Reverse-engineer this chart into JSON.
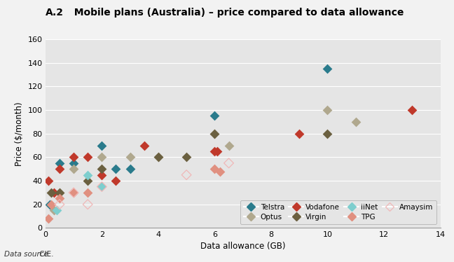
{
  "title_prefix": "A.2",
  "title_main": "  Mobile plans (Australia) – price compared to data allowance",
  "xlabel": "Data allowance (GB)",
  "ylabel": "Price ($/month)",
  "datasource_label": "Data source:",
  "datasource_value": " CIE.",
  "xlim": [
    0,
    14
  ],
  "ylim": [
    0,
    160
  ],
  "xticks": [
    0,
    2,
    4,
    6,
    8,
    10,
    12,
    14
  ],
  "yticks": [
    0,
    20,
    40,
    60,
    80,
    100,
    120,
    140,
    160
  ],
  "plot_bg": "#e5e5e5",
  "fig_bg": "#f2f2f2",
  "grid_color": "#ffffff",
  "series": {
    "Telstra": {
      "color": "#2a7b8c",
      "filled": true,
      "x": [
        0.15,
        0.5,
        1.0,
        2.0,
        2.5,
        3.0,
        6.0,
        10.0
      ],
      "y": [
        20,
        55,
        55,
        70,
        50,
        50,
        95,
        135
      ]
    },
    "Optus": {
      "color": "#b0a88e",
      "filled": true,
      "x": [
        0.3,
        0.5,
        1.0,
        2.0,
        3.0,
        4.0,
        6.0,
        6.5,
        10.0,
        11.0
      ],
      "y": [
        15,
        30,
        50,
        60,
        60,
        60,
        80,
        70,
        100,
        90
      ]
    },
    "Vodafone": {
      "color": "#c0392b",
      "filled": true,
      "x": [
        0.1,
        0.3,
        0.5,
        1.0,
        1.5,
        2.0,
        2.5,
        3.5,
        6.0,
        6.1,
        9.0,
        13.0
      ],
      "y": [
        40,
        30,
        50,
        60,
        60,
        45,
        40,
        70,
        65,
        65,
        80,
        100
      ]
    },
    "Virgin": {
      "color": "#6b6040",
      "filled": true,
      "x": [
        0.2,
        0.5,
        1.5,
        2.0,
        4.0,
        5.0,
        6.0,
        10.0
      ],
      "y": [
        30,
        30,
        40,
        50,
        60,
        60,
        80,
        80
      ]
    },
    "iiNet": {
      "color": "#7ecece",
      "filled": true,
      "x": [
        0.4,
        1.5,
        2.0
      ],
      "y": [
        15,
        45,
        35
      ]
    },
    "TPG": {
      "color": "#e09080",
      "filled": true,
      "x": [
        0.1,
        0.2,
        0.5,
        1.0,
        1.5,
        6.0,
        6.2
      ],
      "y": [
        8,
        20,
        25,
        30,
        30,
        50,
        48
      ]
    },
    "Amaysim": {
      "color": "#f0b8b8",
      "filled": false,
      "x": [
        0.5,
        1.0,
        1.5,
        2.0,
        5.0,
        6.5
      ],
      "y": [
        20,
        30,
        20,
        35,
        45,
        55
      ]
    }
  },
  "legend_row1": [
    "Telstra",
    "Optus",
    "Vodafone",
    "Virgin"
  ],
  "legend_row2": [
    "iiNet",
    "TPG",
    "Amaysim"
  ]
}
